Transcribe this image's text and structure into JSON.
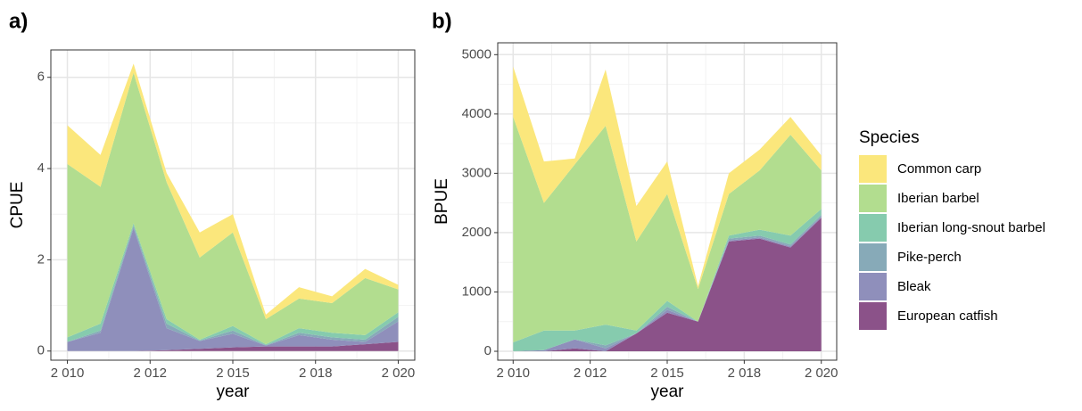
{
  "chart_data": [
    {
      "type": "area",
      "label": "a)",
      "x_label": "year",
      "y_label": "CPUE",
      "x": [
        2010,
        2011,
        2012,
        2013,
        2014,
        2015,
        2016,
        2017,
        2018,
        2019,
        2020
      ],
      "xlim": [
        2009.5,
        2020.5
      ],
      "xticks": [
        {
          "value": 2010,
          "label": "2 010"
        },
        {
          "value": 2012.5,
          "label": "2 012"
        },
        {
          "value": 2015,
          "label": "2 015"
        },
        {
          "value": 2017.5,
          "label": "2 018"
        },
        {
          "value": 2020,
          "label": "2 020"
        }
      ],
      "ylim": [
        -0.2,
        6.6
      ],
      "yticks": [
        0,
        2,
        4,
        6
      ],
      "grid": true,
      "series": [
        {
          "name": "Common carp",
          "color": "#fbe77c",
          "values": [
            0.85,
            0.7,
            0.2,
            0.2,
            0.55,
            0.4,
            0.1,
            0.25,
            0.15,
            0.2,
            0.1
          ]
        },
        {
          "name": "Iberian barbel",
          "color": "#b2dd8f",
          "values": [
            3.8,
            3.0,
            3.3,
            3.0,
            1.8,
            2.05,
            0.55,
            0.65,
            0.65,
            1.25,
            0.5
          ]
        },
        {
          "name": "Iberian long-snout barbel",
          "color": "#86cbae",
          "values": [
            0.1,
            0.15,
            0.05,
            0.1,
            0.02,
            0.1,
            0.02,
            0.1,
            0.1,
            0.1,
            0.1
          ]
        },
        {
          "name": "Pike-perch",
          "color": "#87aab8",
          "values": [
            0,
            0.05,
            0.05,
            0.1,
            0.01,
            0.07,
            0.01,
            0.05,
            0.05,
            0.05,
            0.1
          ]
        },
        {
          "name": "Bleak",
          "color": "#8f8fbb",
          "values": [
            0.2,
            0.4,
            2.7,
            0.48,
            0.17,
            0.3,
            0.02,
            0.25,
            0.15,
            0.05,
            0.45
          ]
        },
        {
          "name": "European catfish",
          "color": "#8b5289",
          "values": [
            0,
            0,
            0,
            0.02,
            0.05,
            0.08,
            0.1,
            0.1,
            0.1,
            0.15,
            0.2
          ]
        }
      ]
    },
    {
      "type": "area",
      "label": "b)",
      "x_label": "year",
      "y_label": "BPUE",
      "legend_title": "Species",
      "x": [
        2010,
        2011,
        2012,
        2013,
        2014,
        2015,
        2016,
        2017,
        2018,
        2019,
        2020
      ],
      "xlim": [
        2009.5,
        2020.5
      ],
      "xticks": [
        {
          "value": 2010,
          "label": "2 010"
        },
        {
          "value": 2012.5,
          "label": "2 012"
        },
        {
          "value": 2015,
          "label": "2 015"
        },
        {
          "value": 2017.5,
          "label": "2 018"
        },
        {
          "value": 2020,
          "label": "2 020"
        }
      ],
      "ylim": [
        -150,
        5200
      ],
      "yticks": [
        0,
        1000,
        2000,
        3000,
        4000,
        5000
      ],
      "grid": true,
      "series": [
        {
          "name": "Common carp",
          "color": "#fbe77c",
          "values": [
            850,
            700,
            100,
            950,
            600,
            550,
            50,
            350,
            350,
            300,
            250
          ]
        },
        {
          "name": "Iberian barbel",
          "color": "#b2dd8f",
          "values": [
            3800,
            2150,
            2800,
            3350,
            1500,
            1800,
            550,
            700,
            1000,
            1700,
            650
          ]
        },
        {
          "name": "Iberian long-snout barbel",
          "color": "#86cbae",
          "values": [
            150,
            330,
            150,
            350,
            50,
            100,
            0,
            50,
            100,
            150,
            100
          ]
        },
        {
          "name": "Pike-perch",
          "color": "#87aab8",
          "values": [
            0,
            0,
            0,
            50,
            0,
            50,
            0,
            30,
            30,
            30,
            30
          ]
        },
        {
          "name": "Bleak",
          "color": "#8f8fbb",
          "values": [
            0,
            20,
            150,
            50,
            0,
            50,
            0,
            20,
            20,
            20,
            20
          ]
        },
        {
          "name": "European catfish",
          "color": "#8b5289",
          "values": [
            0,
            0,
            50,
            0,
            300,
            650,
            500,
            1850,
            1900,
            1750,
            2250
          ]
        }
      ]
    }
  ]
}
